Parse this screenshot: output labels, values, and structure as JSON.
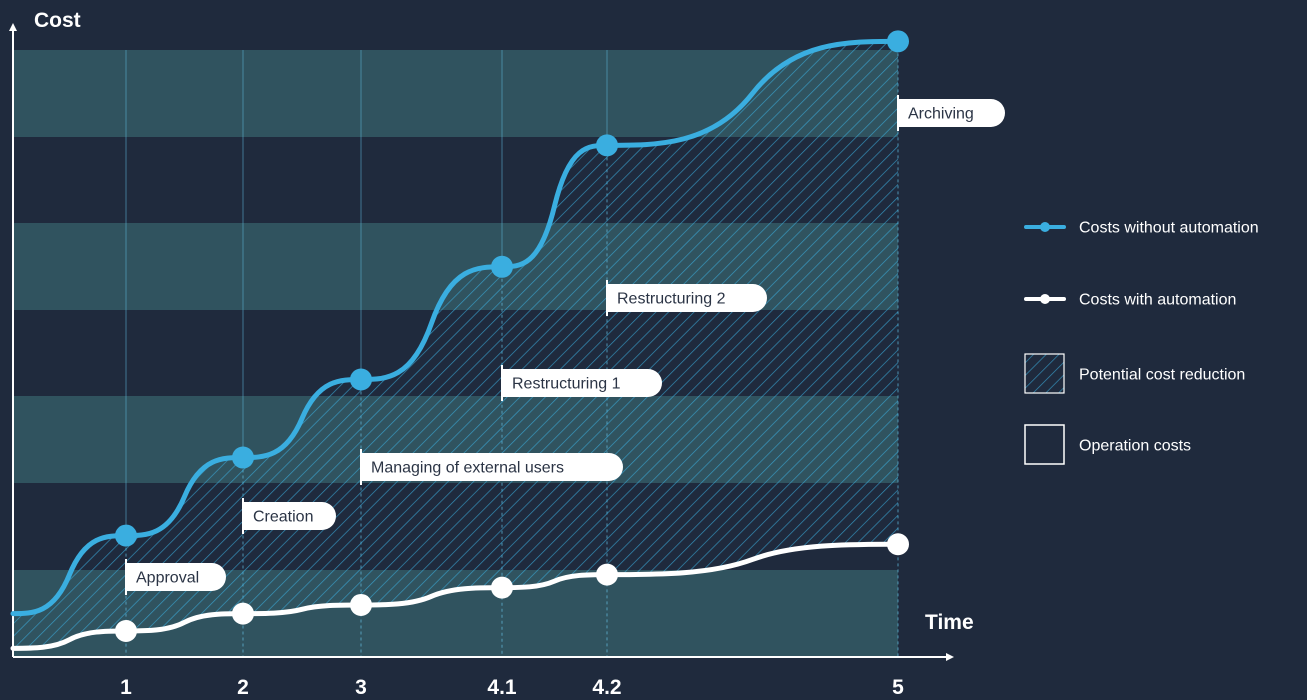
{
  "chart_data": {
    "type": "line",
    "xlabel": "Time",
    "ylabel": "Cost",
    "x": [
      "1",
      "2",
      "3",
      "4.1",
      "4.2",
      "5"
    ],
    "series": [
      {
        "name": "Costs without automation",
        "color": "#3aaee0",
        "start": 5,
        "values": [
          14,
          23,
          32,
          45,
          59,
          71
        ]
      },
      {
        "name": "Costs with automation",
        "color": "#ffffff",
        "start": 1,
        "values": [
          3,
          5,
          6,
          8,
          9.5,
          13
        ]
      }
    ],
    "phases": [
      {
        "label": "Approval",
        "x": "1"
      },
      {
        "label": "Creation",
        "x": "2"
      },
      {
        "label": "Managing of external users",
        "x": "3"
      },
      {
        "label": "Restructuring 1",
        "x": "4.1"
      },
      {
        "label": "Restructuring 2",
        "x": "4.2"
      },
      {
        "label": "Archiving",
        "x": "5"
      }
    ],
    "legend": [
      {
        "label": "Costs without automation",
        "kind": "line",
        "color": "#3aaee0"
      },
      {
        "label": "Costs with automation",
        "kind": "line",
        "color": "#ffffff"
      },
      {
        "label": "Potential cost reduction",
        "kind": "hatch"
      },
      {
        "label": "Operation costs",
        "kind": "box"
      }
    ],
    "legend_position": "right",
    "ylim": [
      0,
      70
    ],
    "background_bands": true,
    "colors": {
      "background": "#1f2a3d",
      "band": "#30535f",
      "accent": "#3aaee0"
    }
  }
}
